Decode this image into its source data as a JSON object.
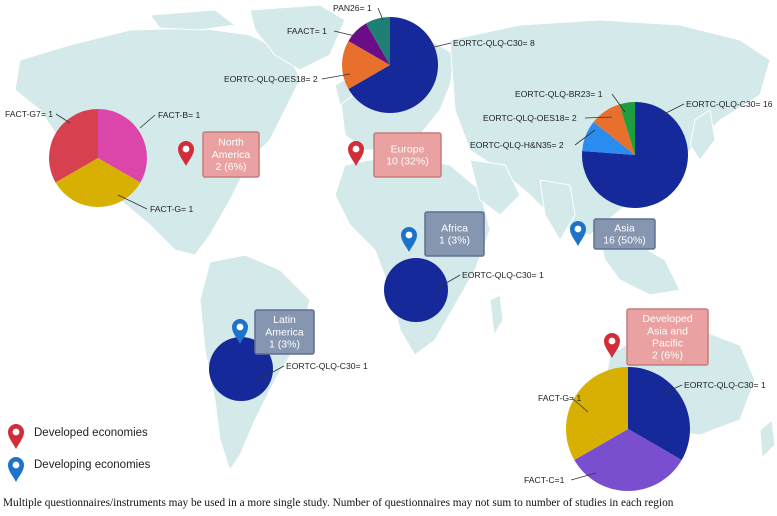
{
  "colors": {
    "ocean": "#ffffff",
    "land": "#d3e9ea",
    "land_border": "#ffffff",
    "developed_pin": "#d22e3a",
    "developing_pin": "#1c73c9",
    "developed_box": "#e9a1a1",
    "developed_box_border": "#c97b7b",
    "developing_box": "#8696b0",
    "developing_box_border": "#5f7092"
  },
  "legend": {
    "developed": {
      "label": "Developed economies",
      "icon": "map-pin-red-icon"
    },
    "developing": {
      "label": "Developing economies",
      "icon": "map-pin-blue-icon"
    }
  },
  "footnote": "Multiple questionnaires/instruments may be used in a more single study. Number of questionnaires may not sum to number of studies in each region",
  "chart_data": [
    {
      "type": "pie",
      "region": {
        "name_lines": [
          "North",
          "America"
        ],
        "summary": "2 (6%)",
        "economy": "developed"
      },
      "slices": [
        {
          "label": "FACT-B= 1",
          "name": "FACT-B",
          "value": 1,
          "color": "#dc46ab"
        },
        {
          "label": "FACT-G= 1",
          "name": "FACT-G",
          "value": 1,
          "color": "#d8b002"
        },
        {
          "label": "FACT-G7= 1",
          "name": "FACT-G7",
          "value": 1,
          "color": "#d6404f"
        }
      ]
    },
    {
      "type": "pie",
      "region": {
        "name_lines": [
          "Europe"
        ],
        "summary": "10 (32%)",
        "economy": "developed"
      },
      "slices": [
        {
          "label": "EORTC-QLQ-C30= 8",
          "name": "EORTC-QLQ-C30",
          "value": 8,
          "color": "#16299a"
        },
        {
          "label": "EORTC-QLQ-OES18= 2",
          "name": "EORTC-QLQ-OES18",
          "value": 2,
          "color": "#e96f2d"
        },
        {
          "label": "FAACT= 1",
          "name": "FAACT",
          "value": 1,
          "color": "#6a0d87"
        },
        {
          "label": "PAN26= 1",
          "name": "PAN26",
          "value": 1,
          "color": "#1f7f75"
        }
      ]
    },
    {
      "type": "pie",
      "region": {
        "name_lines": [
          "Asia"
        ],
        "summary": "16 (50%)",
        "economy": "developing"
      },
      "slices": [
        {
          "label": "EORTC-QLQ-C30= 16",
          "name": "EORTC-QLQ-C30",
          "value": 16,
          "color": "#16299a"
        },
        {
          "label": "EORTC-QLQ-H&N35= 2",
          "name": "EORTC-QLQ-H&N35",
          "value": 2,
          "color": "#2b8cf0"
        },
        {
          "label": "EORTC-QLQ-OES18= 2",
          "name": "EORTC-QLQ-OES18",
          "value": 2,
          "color": "#e96f2d"
        },
        {
          "label": "EORTC-QLQ-BR23= 1",
          "name": "EORTC-QLQ-BR23",
          "value": 1,
          "color": "#1f9e3f"
        }
      ]
    },
    {
      "type": "pie",
      "region": {
        "name_lines": [
          "Africa"
        ],
        "summary": "1 (3%)",
        "economy": "developing"
      },
      "slices": [
        {
          "label": "EORTC-QLQ-C30= 1",
          "name": "EORTC-QLQ-C30",
          "value": 1,
          "color": "#16299a"
        }
      ]
    },
    {
      "type": "pie",
      "region": {
        "name_lines": [
          "Latin",
          "America"
        ],
        "summary": "1 (3%)",
        "economy": "developing"
      },
      "slices": [
        {
          "label": "EORTC-QLQ-C30= 1",
          "name": "EORTC-QLQ-C30",
          "value": 1,
          "color": "#16299a"
        }
      ]
    },
    {
      "type": "pie",
      "region": {
        "name_lines": [
          "Developed",
          "Asia and",
          "Pacific"
        ],
        "summary": "2 (6%)",
        "economy": "developed"
      },
      "slices": [
        {
          "label": "EORTC-QLQ-C30= 1",
          "name": "EORTC-QLQ-C30",
          "value": 1,
          "color": "#16299a"
        },
        {
          "label": "FACT-C=1",
          "name": "FACT-C",
          "value": 1,
          "color": "#7a4fcf"
        },
        {
          "label": "FACT-G= 1",
          "name": "FACT-G",
          "value": 1,
          "color": "#d8b002"
        }
      ]
    }
  ]
}
